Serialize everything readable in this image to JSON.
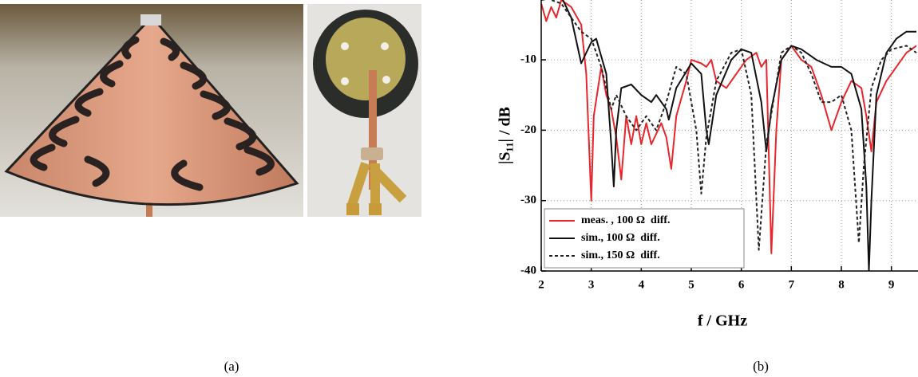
{
  "chart_data": {
    "type": "line",
    "xlabel": "f / GHz",
    "ylabel": "|S₁₁| / dB",
    "xlim": [
      2,
      9.5
    ],
    "ylim": [
      -40,
      -1.5
    ],
    "xticks": [
      2,
      3,
      4,
      5,
      6,
      7,
      8,
      9
    ],
    "yticks": [
      -10,
      -20,
      -30,
      -40
    ],
    "grid": true,
    "legend": "lower left",
    "series": [
      {
        "name": "meas. , 100 Ω  diff.",
        "color": "#e8262b",
        "dash": false,
        "x": [
          2.0,
          2.1,
          2.2,
          2.3,
          2.4,
          2.6,
          2.8,
          2.9,
          3.0,
          3.05,
          3.2,
          3.3,
          3.4,
          3.5,
          3.6,
          3.7,
          3.8,
          3.9,
          4.0,
          4.1,
          4.2,
          4.4,
          4.5,
          4.6,
          4.7,
          4.9,
          5.0,
          5.2,
          5.3,
          5.4,
          5.5,
          5.7,
          5.9,
          6.1,
          6.3,
          6.4,
          6.5,
          6.6,
          6.7,
          6.8,
          7.0,
          7.2,
          7.4,
          7.6,
          7.8,
          8.0,
          8.2,
          8.4,
          8.5,
          8.6,
          8.7,
          8.9,
          9.1,
          9.3,
          9.5
        ],
        "values": [
          -2,
          -4.5,
          -2.5,
          -4,
          -1.5,
          -2.5,
          -5,
          -12,
          -30,
          -18,
          -11,
          -15,
          -17,
          -21,
          -27,
          -18,
          -22,
          -18,
          -22,
          -19,
          -22,
          -19,
          -21,
          -25.5,
          -18,
          -13,
          -10,
          -10.5,
          -11,
          -10,
          -13,
          -14,
          -12,
          -10,
          -9,
          -11,
          -10,
          -37.5,
          -20,
          -10,
          -8,
          -10,
          -11,
          -15,
          -20,
          -16,
          -13,
          -14,
          -18,
          -23,
          -16,
          -13,
          -11,
          -9,
          -8
        ]
      },
      {
        "name": "sim., 100 Ω  diff.",
        "color": "#111111",
        "dash": false,
        "x": [
          2.0,
          2.4,
          2.6,
          2.8,
          3.0,
          3.1,
          3.3,
          3.4,
          3.45,
          3.5,
          3.6,
          3.8,
          4.0,
          4.2,
          4.3,
          4.5,
          4.55,
          4.7,
          5.0,
          5.2,
          5.3,
          5.35,
          5.5,
          5.8,
          6.0,
          6.2,
          6.4,
          6.5,
          6.6,
          6.8,
          7.0,
          7.2,
          7.5,
          7.8,
          8.0,
          8.2,
          8.4,
          8.5,
          8.55,
          8.6,
          8.7,
          8.9,
          9.1,
          9.3,
          9.5
        ],
        "values": [
          -1.5,
          -1,
          -4,
          -10.5,
          -7.5,
          -7,
          -12,
          -22,
          -28,
          -20,
          -14,
          -13.5,
          -15,
          -16,
          -15,
          -17,
          -18.5,
          -14,
          -10.5,
          -12,
          -20,
          -22,
          -15,
          -10,
          -8.5,
          -9,
          -16,
          -23,
          -17,
          -10,
          -8,
          -8.5,
          -10,
          -11,
          -11,
          -12,
          -17,
          -28,
          -40,
          -30,
          -15,
          -9,
          -7,
          -6,
          -6
        ]
      },
      {
        "name": "sim., 150 Ω  diff.",
        "color": "#222222",
        "dash": true,
        "x": [
          2.0,
          2.4,
          2.6,
          2.8,
          3.0,
          3.2,
          3.4,
          3.5,
          3.7,
          3.9,
          4.1,
          4.3,
          4.5,
          4.7,
          4.9,
          5.1,
          5.2,
          5.3,
          5.5,
          5.8,
          6.0,
          6.2,
          6.35,
          6.5,
          6.8,
          7.0,
          7.2,
          7.4,
          7.6,
          7.8,
          8.0,
          8.2,
          8.35,
          8.45,
          8.6,
          8.8,
          9.0,
          9.3,
          9.5
        ],
        "values": [
          -1,
          -2,
          -4,
          -6,
          -7,
          -11,
          -17,
          -15,
          -18,
          -20,
          -18,
          -20,
          -16,
          -11,
          -12,
          -20,
          -29,
          -21,
          -13,
          -9,
          -8.5,
          -15,
          -37,
          -22,
          -9,
          -8,
          -9,
          -12,
          -16,
          -16,
          -15,
          -20,
          -36,
          -25,
          -14,
          -10,
          -8.5,
          -8,
          -9
        ]
      }
    ]
  },
  "captions": [
    "(a)",
    "(b)"
  ]
}
